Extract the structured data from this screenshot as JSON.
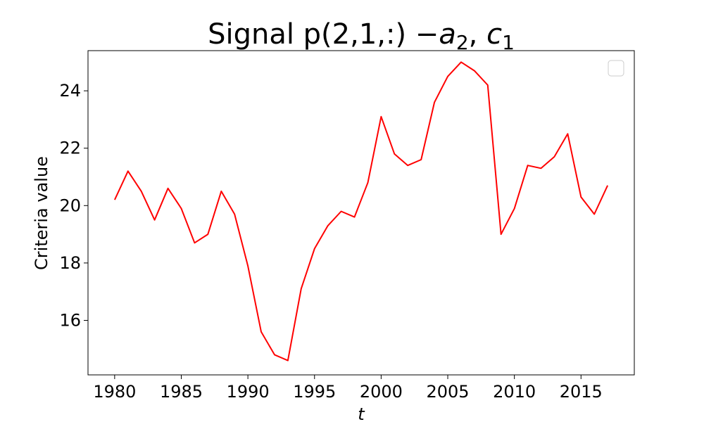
{
  "chart_data": {
    "type": "line",
    "title_main": "Signal p(2,1,:) −",
    "title_sym1": "a",
    "title_sub1": "2",
    "title_sep": ", ",
    "title_sym2": "c",
    "title_sub2": "1",
    "xlabel": "t",
    "ylabel": "Criteria value",
    "xlim": [
      1978,
      2019
    ],
    "ylim": [
      14.1,
      25.4
    ],
    "x_ticks": [
      "1980",
      "1985",
      "1990",
      "1995",
      "2000",
      "2005",
      "2010",
      "2015"
    ],
    "y_ticks": [
      "16",
      "18",
      "20",
      "22",
      "24"
    ],
    "legend": "top-right",
    "line_color": "#ff0000",
    "series": [
      {
        "x": [
          1980,
          1981,
          1982,
          1983,
          1984,
          1985,
          1986,
          1987,
          1988,
          1989,
          1990,
          1991,
          1992,
          1993,
          1994,
          1995,
          1996,
          1997,
          1998,
          1999,
          2000,
          2001,
          2002,
          2003,
          2004,
          2005,
          2006,
          2007,
          2008,
          2009,
          2010,
          2011,
          2012,
          2013,
          2014,
          2015,
          2016,
          2017
        ],
        "values": [
          20.2,
          21.2,
          20.5,
          19.5,
          20.6,
          19.9,
          18.7,
          19.0,
          20.5,
          19.7,
          17.9,
          15.6,
          14.8,
          14.6,
          17.1,
          18.5,
          19.3,
          19.8,
          19.6,
          20.8,
          23.1,
          21.8,
          21.4,
          21.6,
          23.6,
          24.5,
          25.0,
          24.7,
          24.2,
          19.0,
          19.9,
          21.4,
          21.3,
          21.7,
          22.5,
          20.3,
          19.7,
          20.7
        ]
      }
    ]
  }
}
